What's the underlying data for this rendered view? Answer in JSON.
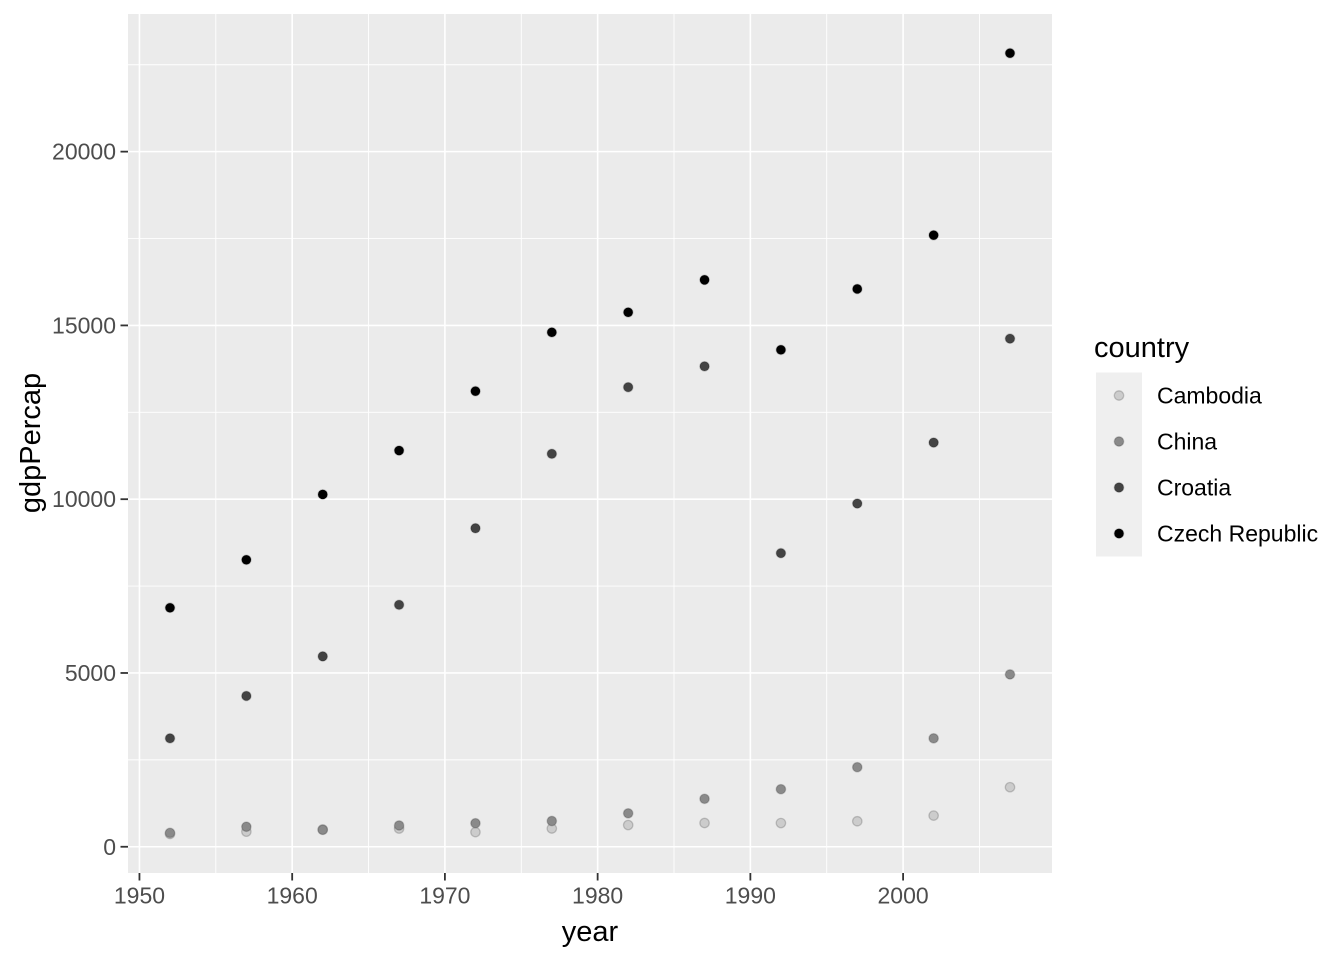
{
  "chart_data": {
    "type": "scatter",
    "title": "",
    "xlabel": "year",
    "ylabel": "gdpPercap",
    "legend": {
      "title": "country",
      "position": "right",
      "entries": [
        "Cambodia",
        "China",
        "Croatia",
        "Czech Republic"
      ]
    },
    "x": [
      1952,
      1957,
      1962,
      1967,
      1972,
      1977,
      1982,
      1987,
      1992,
      1997,
      2002,
      2007
    ],
    "series": [
      {
        "name": "Cambodia",
        "color": "#CCCCCC",
        "values": [
          368.5,
          434.0,
          496.9,
          523.4,
          421.6,
          525.0,
          624.5,
          683.9,
          682.3,
          734.3,
          896.2,
          1713.8
        ]
      },
      {
        "name": "China",
        "color": "#8A8A8A",
        "values": [
          400.4,
          576.0,
          487.7,
          612.7,
          676.9,
          741.2,
          962.4,
          1378.9,
          1655.8,
          2289.2,
          3119.3,
          4959.1
        ]
      },
      {
        "name": "Croatia",
        "color": "#434343",
        "values": [
          3119.2,
          4338.2,
          5477.9,
          6960.3,
          9164.1,
          11305.4,
          13221.8,
          13822.6,
          8447.8,
          9875.6,
          11628.4,
          14619.2
        ]
      },
      {
        "name": "Czech Republic",
        "color": "#000000",
        "values": [
          6876.1,
          8256.3,
          10136.9,
          11399.4,
          13108.5,
          14800.2,
          15377.2,
          16310.4,
          14297.0,
          16048.5,
          17596.2,
          22833.3
        ]
      }
    ],
    "axes": {
      "x_ticks": [
        1950,
        1960,
        1970,
        1980,
        1990,
        2000
      ],
      "x_minor": [
        1955,
        1965,
        1975,
        1985,
        1995,
        2005
      ],
      "y_ticks": [
        0,
        5000,
        10000,
        15000,
        20000
      ],
      "y_minor": [
        2500,
        7500,
        12500,
        17500,
        22500
      ],
      "xlim": [
        1949.25,
        2009.75
      ],
      "ylim": [
        -755,
        23960
      ],
      "grid": "major+minor"
    },
    "style": {
      "panel_bg": "#EBEBEB",
      "grid_color": "#FFFFFF",
      "tick_mark_color": "#333333",
      "tick_label_color": "#4D4D4D",
      "axis_title_color": "#000000",
      "legend_key_bg": "#EFEFEF",
      "point_outline": "rgba(0,0,0,0.18)"
    }
  }
}
